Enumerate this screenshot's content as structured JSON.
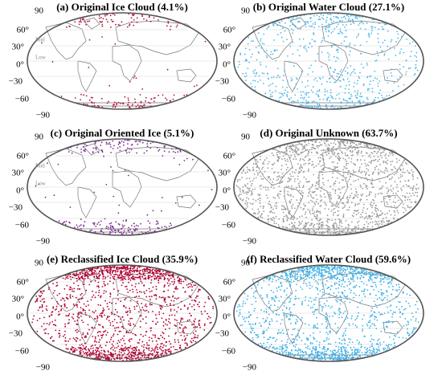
{
  "panels": [
    {
      "title": "(a) Original Ice Cloud (4.1%)",
      "color": "#b0153a",
      "lat_labels": [
        "90",
        "60°",
        "30°",
        "0°",
        "−30",
        "−60",
        "−90"
      ],
      "zone_labels": [
        "Mid",
        "Low"
      ]
    },
    {
      "title": "(b) Original Water Cloud (27.1%)",
      "color": "#4fb8e8",
      "lat_labels": [
        "90",
        "60°",
        "30°",
        "0°",
        "−30",
        "−60",
        "−90"
      ]
    },
    {
      "title": "(c) Original Oriented Ice (5.1%)",
      "color": "#7b2d8e",
      "lat_labels": [
        "90",
        "60°",
        "30°",
        "0°",
        "−30",
        "−60",
        "−90"
      ],
      "zone_labels": [
        "Mid",
        "Low"
      ]
    },
    {
      "title": "(d) Original Unknown (63.7%)",
      "color": "#9a9a9a",
      "lat_labels": [
        "90",
        "60°",
        "30°",
        "0°",
        "−30",
        "−60",
        "−90"
      ]
    },
    {
      "title": "(e) Reclassified Ice Cloud (35.9%)",
      "color": "#b00030",
      "lat_labels": [
        "90",
        "60°",
        "30°",
        "0°",
        "−30",
        "−60",
        "−90"
      ]
    },
    {
      "title": "(f) Reclassified Water Cloud (59.6%)",
      "color": "#3cb0e6",
      "lat_labels": [
        "90",
        "60°",
        "30°",
        "0°",
        "−30",
        "−60",
        "−90"
      ]
    }
  ]
}
